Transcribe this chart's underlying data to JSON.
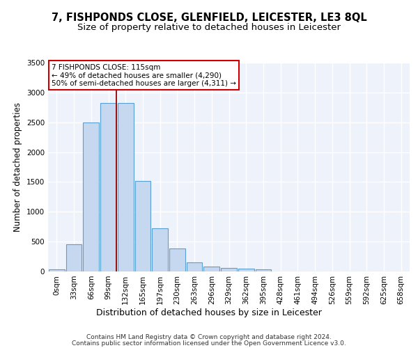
{
  "title": "7, FISHPONDS CLOSE, GLENFIELD, LEICESTER, LE3 8QL",
  "subtitle": "Size of property relative to detached houses in Leicester",
  "xlabel": "Distribution of detached houses by size in Leicester",
  "ylabel": "Number of detached properties",
  "bar_labels": [
    "0sqm",
    "33sqm",
    "66sqm",
    "99sqm",
    "132sqm",
    "165sqm",
    "197sqm",
    "230sqm",
    "263sqm",
    "296sqm",
    "329sqm",
    "362sqm",
    "395sqm",
    "428sqm",
    "461sqm",
    "494sqm",
    "526sqm",
    "559sqm",
    "592sqm",
    "625sqm",
    "658sqm"
  ],
  "bar_values": [
    30,
    460,
    2500,
    2820,
    2820,
    1520,
    720,
    380,
    150,
    80,
    55,
    50,
    30,
    0,
    0,
    0,
    0,
    0,
    0,
    0,
    0
  ],
  "bar_color": "#c5d8f0",
  "bar_edgecolor": "#5a9fd4",
  "ylim": [
    0,
    3500
  ],
  "yticks": [
    0,
    500,
    1000,
    1500,
    2000,
    2500,
    3000,
    3500
  ],
  "red_line_x": 3.47,
  "annotation_text_line1": "7 FISHPONDS CLOSE: 115sqm",
  "annotation_text_line2": "← 49% of detached houses are smaller (4,290)",
  "annotation_text_line3": "50% of semi-detached houses are larger (4,311) →",
  "footer_line1": "Contains HM Land Registry data © Crown copyright and database right 2024.",
  "footer_line2": "Contains public sector information licensed under the Open Government Licence v3.0.",
  "background_color": "#eef2fa",
  "grid_color": "#ffffff",
  "title_fontsize": 10.5,
  "subtitle_fontsize": 9.5,
  "xlabel_fontsize": 9,
  "ylabel_fontsize": 8.5,
  "tick_fontsize": 7.5,
  "footer_fontsize": 6.5
}
